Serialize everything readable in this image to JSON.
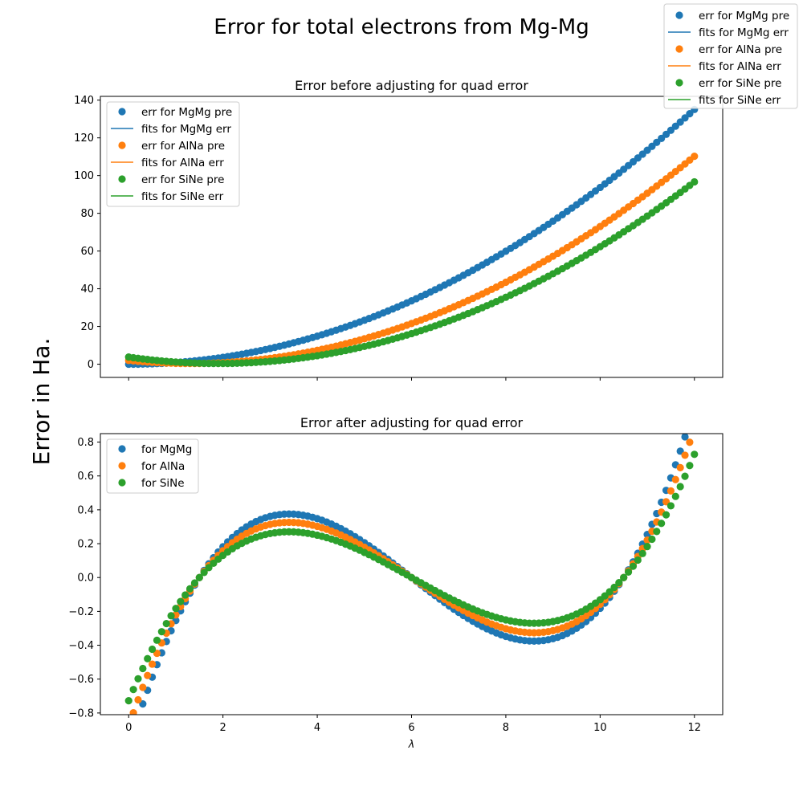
{
  "figure": {
    "suptitle": "Error for total electrons from Mg-Mg",
    "ylabel": "Error in Ha.",
    "colors": {
      "MgMg": "#1f77b4",
      "AlNa": "#ff7f0e",
      "SiNe": "#2ca02c"
    }
  },
  "figure_legend": [
    {
      "label": "err for MgMg pre",
      "kind": "marker",
      "color": "#1f77b4"
    },
    {
      "label": "fits for MgMg err",
      "kind": "line",
      "color": "#1f77b4"
    },
    {
      "label": "err for AlNa pre",
      "kind": "marker",
      "color": "#ff7f0e"
    },
    {
      "label": "fits for AlNa err",
      "kind": "line",
      "color": "#ff7f0e"
    },
    {
      "label": "err for SiNe pre",
      "kind": "marker",
      "color": "#2ca02c"
    },
    {
      "label": "fits for SiNe err",
      "kind": "line",
      "color": "#2ca02c"
    }
  ],
  "chart_data": [
    {
      "type": "scatter",
      "title": "Error before adjusting for quad error",
      "xlabel": "",
      "ylabel": "",
      "xlim": [
        -0.6,
        12.6
      ],
      "ylim": [
        -7,
        142
      ],
      "xticks": [
        0,
        2,
        4,
        6,
        8,
        10,
        12
      ],
      "xtick_labels_visible": false,
      "yticks": [
        0,
        20,
        40,
        60,
        80,
        100,
        120,
        140
      ],
      "legend_position": "upper-left",
      "x": {
        "start": 0,
        "end": 12,
        "step": 0.1
      },
      "series": [
        {
          "name": "err for MgMg pre",
          "kind": "marker",
          "color": "#1f77b4",
          "quadratic": [
            0.0,
            -0.05,
            0.942
          ]
        },
        {
          "name": "fits for MgMg err",
          "kind": "line",
          "color": "#1f77b4",
          "quadratic": [
            0.0,
            -0.05,
            0.942
          ]
        },
        {
          "name": "err for AlNa pre",
          "kind": "marker",
          "color": "#ff7f0e",
          "quadratic": [
            2.0,
            -2.5,
            0.96
          ]
        },
        {
          "name": "fits for AlNa err",
          "kind": "line",
          "color": "#ff7f0e",
          "quadratic": [
            2.0,
            -2.5,
            0.96
          ]
        },
        {
          "name": "err for SiNe pre",
          "kind": "marker",
          "color": "#2ca02c",
          "quadratic": [
            3.8,
            -3.6,
            0.945
          ]
        },
        {
          "name": "fits for SiNe err",
          "kind": "line",
          "color": "#2ca02c",
          "quadratic": [
            3.8,
            -3.6,
            0.945
          ]
        }
      ]
    },
    {
      "type": "scatter",
      "title": "Error after adjusting for quad error",
      "xlabel": "λ",
      "ylabel": "",
      "xlim": [
        -0.6,
        12.6
      ],
      "ylim": [
        -0.81,
        0.85
      ],
      "xticks": [
        0,
        2,
        4,
        6,
        8,
        10,
        12
      ],
      "xtick_labels_visible": true,
      "yticks": [
        -0.8,
        -0.6,
        -0.4,
        -0.2,
        0.0,
        0.2,
        0.4,
        0.6,
        0.8
      ],
      "legend_position": "upper-left",
      "x": {
        "start": 0,
        "end": 12,
        "step": 0.1
      },
      "series": [
        {
          "name": "for MgMg",
          "kind": "marker",
          "color": "#1f77b4",
          "cubic_roots": [
            1.5,
            6.0,
            10.5
          ],
          "scale": 0.0107
        },
        {
          "name": "for AlNa",
          "kind": "marker",
          "color": "#ff7f0e",
          "cubic_roots": [
            1.5,
            6.0,
            10.5
          ],
          "scale": 0.0093
        },
        {
          "name": "for SiNe",
          "kind": "marker",
          "color": "#2ca02c",
          "cubic_roots": [
            1.5,
            6.0,
            10.5
          ],
          "scale": 0.0077
        }
      ]
    }
  ]
}
